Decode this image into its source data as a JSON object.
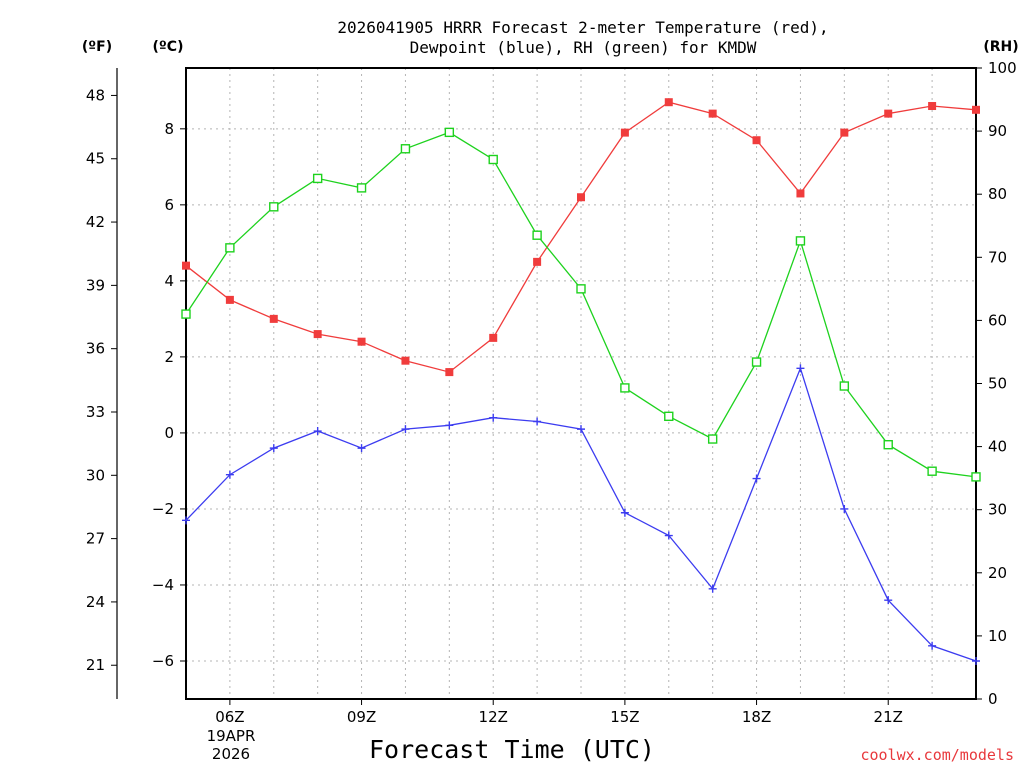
{
  "chart_data": {
    "type": "line",
    "title_line1": "2026041905 HRRR Forecast 2-meter Temperature (red),",
    "title_line2": "Dewpoint (blue), RH (green) for KMDW",
    "xlabel": "Forecast Time (UTC)",
    "date_label_line1": "19APR",
    "date_label_line2": "2026",
    "credit": "coolwx.com/models",
    "units": {
      "fahrenheit": "(ºF)",
      "celsius": "(ºC)",
      "rh": "(RH)"
    },
    "hours": [
      5,
      6,
      7,
      8,
      9,
      10,
      11,
      12,
      13,
      14,
      15,
      16,
      17,
      18,
      19,
      20,
      21,
      22,
      23
    ],
    "x_ticks": [
      {
        "hour": 6,
        "label": "06Z"
      },
      {
        "hour": 9,
        "label": "09Z"
      },
      {
        "hour": 12,
        "label": "12Z"
      },
      {
        "hour": 15,
        "label": "15Z"
      },
      {
        "hour": 18,
        "label": "18Z"
      },
      {
        "hour": 21,
        "label": "21Z"
      }
    ],
    "xlim": [
      5,
      23
    ],
    "ylim_celsius": [
      -7,
      9.6
    ],
    "yticks_celsius": [
      "8",
      "6",
      "4",
      "2",
      "0",
      "−2",
      "−4",
      "−6"
    ],
    "ylim_fahrenheit": [
      19.4,
      49.3
    ],
    "yticks_fahrenheit": [
      "48",
      "45",
      "42",
      "39",
      "36",
      "33",
      "30",
      "27",
      "24",
      "21"
    ],
    "ylim_rh": [
      0,
      100
    ],
    "yticks_rh": [
      "100",
      "90",
      "80",
      "70",
      "60",
      "50",
      "40",
      "30",
      "20",
      "10",
      "0"
    ],
    "series": [
      {
        "name": "Temperature",
        "unit": "C",
        "axis": "celsius",
        "color": "#f03c3c",
        "marker": "filled-square",
        "values": [
          4.4,
          3.5,
          3.0,
          2.6,
          2.4,
          1.9,
          1.6,
          2.5,
          4.5,
          6.2,
          7.9,
          8.7,
          8.4,
          7.7,
          6.3,
          7.9,
          8.4,
          8.6,
          8.5
        ]
      },
      {
        "name": "Dewpoint",
        "unit": "C",
        "axis": "celsius",
        "color": "#3c3cf0",
        "marker": "plus",
        "values": [
          -2.3,
          -1.1,
          -0.4,
          0.05,
          -0.4,
          0.1,
          0.2,
          0.4,
          0.3,
          0.1,
          -2.1,
          -2.7,
          -4.1,
          -1.2,
          1.7,
          -2.0,
          -4.4,
          -5.6,
          -6.0
        ]
      },
      {
        "name": "RH",
        "unit": "%",
        "axis": "rh",
        "color": "#1ed21e",
        "marker": "open-square",
        "values": [
          61,
          71.5,
          78,
          82.5,
          81,
          87.2,
          89.8,
          85.5,
          73.5,
          65,
          49.3,
          44.8,
          41.2,
          53.4,
          72.6,
          49.6,
          40.3,
          36.1,
          35.2
        ]
      }
    ]
  }
}
